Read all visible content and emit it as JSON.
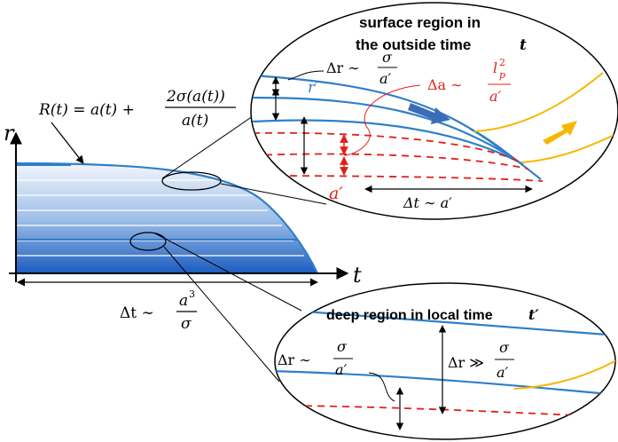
{
  "axes": {
    "r_label": "r",
    "t_label": "t"
  },
  "formula_R": {
    "lhs": "R(t) = a(t) +",
    "numerator": "2σ(a(t))",
    "denominator": "a(t)"
  },
  "bottom_formula": {
    "prefix": "Δt ∼",
    "numerator": "a",
    "numerator_exp": "3",
    "denominator": "σ"
  },
  "surface_panel": {
    "title_line1": "surface region in",
    "title_line2": "the outside time",
    "title_var": "t",
    "dr_prefix": "Δr ∼",
    "dr_num": "σ",
    "dr_den": "a′",
    "r_prime": "r′",
    "da_prefix": "Δa ∼",
    "da_num": "l",
    "da_num_sup": "2",
    "da_num_sub": "p",
    "da_den": "a′",
    "a_prime": "a′",
    "dt_label": "Δt ∼ a′"
  },
  "deep_panel": {
    "title": "deep region in local time",
    "title_var": "t′",
    "dr_prefix": "Δr ∼",
    "dr_num": "σ",
    "dr_den": "a′",
    "dr2_prefix": "Δr ≫",
    "dr2_num": "σ",
    "dr2_den": "a′"
  },
  "colors": {
    "blue": "#2f7fc8",
    "dark_blue": "#1e5fae",
    "red": "#e0201a",
    "orange": "#f5b800",
    "black": "#000000"
  }
}
